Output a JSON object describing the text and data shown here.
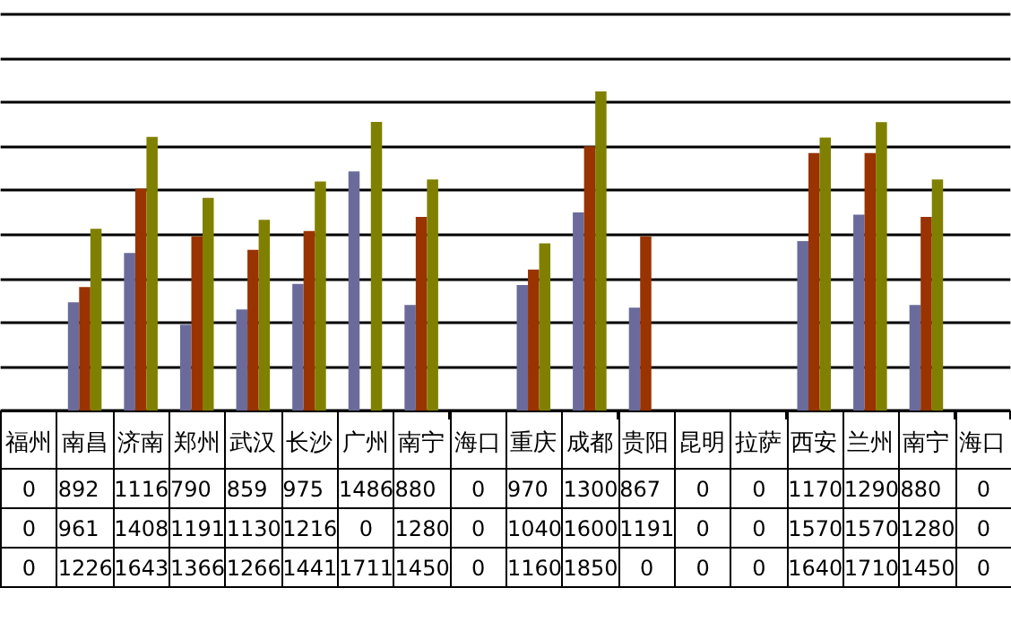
{
  "chart_data": {
    "type": "bar",
    "categories": [
      "福州",
      "南昌",
      "济南",
      "郑州",
      "武汉",
      "长沙",
      "广州",
      "南宁",
      "海口",
      "重庆",
      "成都",
      "贵阳",
      "昆明",
      "拉萨",
      "西安",
      "兰州",
      "南宁",
      "海口"
    ],
    "series": [
      {
        "color": "#6b6b9b",
        "values": [
          null,
          892,
          1116,
          790,
          859,
          975,
          1486,
          880,
          null,
          970,
          1300,
          867,
          null,
          null,
          1170,
          1290,
          880,
          null
        ],
        "value_labels": [
          "0",
          "892",
          "1116",
          "790",
          "859",
          "975",
          "1486",
          "880",
          "0",
          "970",
          "1300",
          "867",
          "0",
          "0",
          "1170",
          "1290",
          "880",
          "0"
        ]
      },
      {
        "color": "#993300",
        "values": [
          null,
          961,
          1408,
          1191,
          1130,
          1216,
          null,
          1280,
          null,
          1040,
          1600,
          1191,
          null,
          null,
          1570,
          1570,
          1280,
          null
        ],
        "value_labels": [
          "0",
          "961",
          "1408",
          "1191",
          "1130",
          "1216",
          "0",
          "1280",
          "0",
          "1040",
          "1600",
          "1191",
          "0",
          "0",
          "1570",
          "1570",
          "1280",
          "0"
        ]
      },
      {
        "color": "#808000",
        "values": [
          null,
          1226,
          1643,
          1366,
          1266,
          1441,
          1711,
          1450,
          null,
          1160,
          1850,
          null,
          null,
          null,
          1640,
          1710,
          1450,
          null
        ],
        "value_labels": [
          "0",
          "1226",
          "1643",
          "1366",
          "1266",
          "1441",
          "1711",
          "1450",
          "0",
          "1160",
          "1850",
          "0",
          "0",
          "0",
          "1640",
          "1710",
          "1450",
          "0"
        ]
      }
    ],
    "ylim": [
      400,
      2200
    ],
    "yticks": [
      {
        "value": 400,
        "label": null
      },
      {
        "value": 600,
        "label": null
      },
      {
        "value": 800,
        "label": null
      },
      {
        "value": 1000,
        "label": null
      },
      {
        "value": 1200,
        "label": null
      },
      {
        "value": 1400,
        "label": null
      },
      {
        "value": 1600,
        "label": null
      },
      {
        "value": 1800,
        "label": null
      },
      {
        "value": 2000,
        "label": null
      },
      {
        "value": 2200,
        "label": null
      }
    ],
    "grid": "y",
    "tick_labels": "x"
  }
}
